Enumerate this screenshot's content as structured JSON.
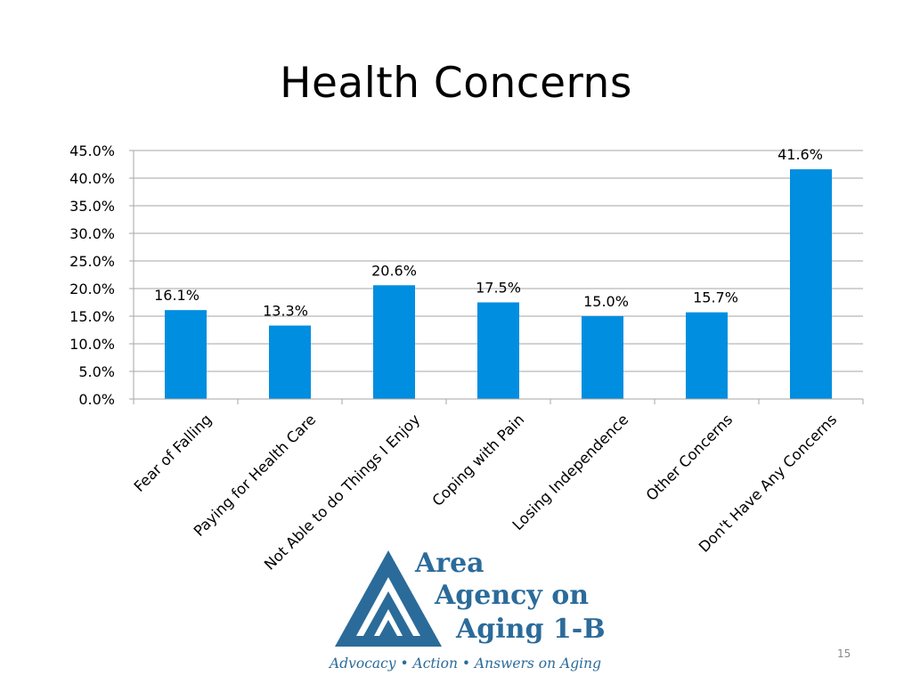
{
  "slide": {
    "title": "Health Concerns",
    "page_number": "15"
  },
  "logo": {
    "line1": "Area",
    "line2": "Agency on",
    "line3": "Aging 1-B",
    "tagline": "Advocacy • Action • Answers on Aging"
  },
  "colors": {
    "bar": "#008ee0",
    "grid": "#a6a6a6",
    "logo": "#2b6b9a"
  },
  "chart_data": {
    "type": "bar",
    "title": "",
    "xlabel": "",
    "ylabel": "",
    "categories": [
      "Fear of Falling",
      "Paying for Health Care",
      "Not Able to do Things I Enjoy",
      "Coping with Pain",
      "Losing Independence",
      "Other Concerns",
      "Don't Have Any Concerns"
    ],
    "values": [
      16.1,
      13.3,
      20.6,
      17.5,
      15.0,
      15.7,
      41.6
    ],
    "data_labels": [
      "16.1%",
      "13.3%",
      "20.6%",
      "17.5%",
      "15.0%",
      "15.7%",
      "41.6%"
    ],
    "ylim": [
      0,
      45
    ],
    "yticks": [
      "0.0%",
      "5.0%",
      "10.0%",
      "15.0%",
      "20.0%",
      "25.0%",
      "30.0%",
      "35.0%",
      "40.0%",
      "45.0%"
    ],
    "grid": true,
    "legend": "none"
  }
}
